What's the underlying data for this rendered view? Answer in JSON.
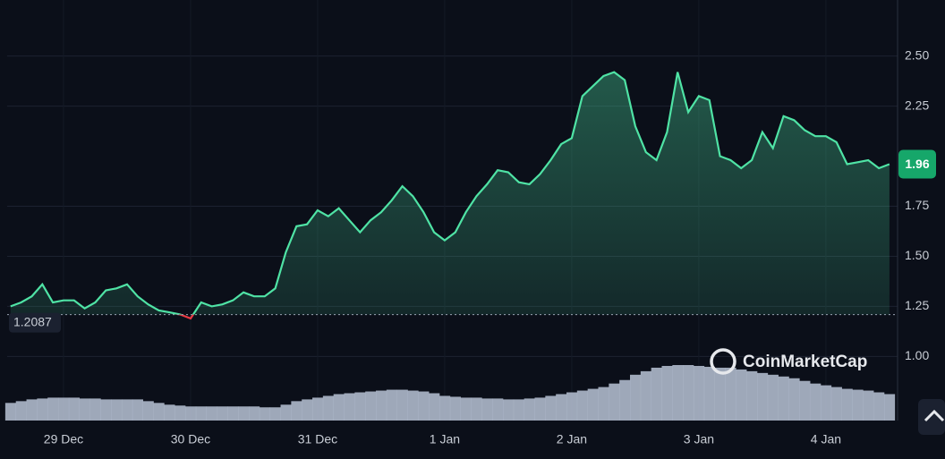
{
  "chart_data": {
    "type": "line",
    "brand": "CoinMarketCap",
    "values": [
      1.25,
      1.27,
      1.3,
      1.36,
      1.27,
      1.28,
      1.28,
      1.24,
      1.27,
      1.33,
      1.34,
      1.36,
      1.3,
      1.26,
      1.23,
      1.22,
      1.21,
      1.19,
      1.27,
      1.25,
      1.26,
      1.28,
      1.32,
      1.3,
      1.3,
      1.34,
      1.52,
      1.65,
      1.66,
      1.73,
      1.7,
      1.74,
      1.68,
      1.62,
      1.68,
      1.72,
      1.78,
      1.85,
      1.8,
      1.72,
      1.62,
      1.58,
      1.62,
      1.72,
      1.8,
      1.86,
      1.93,
      1.92,
      1.87,
      1.86,
      1.91,
      1.98,
      2.06,
      2.09,
      2.3,
      2.35,
      2.4,
      2.42,
      2.38,
      2.15,
      2.02,
      1.98,
      2.12,
      2.42,
      2.22,
      2.3,
      2.28,
      2.0,
      1.98,
      1.94,
      1.98,
      2.12,
      2.04,
      2.2,
      2.18,
      2.13,
      2.1,
      2.1,
      2.07,
      1.96,
      1.97,
      1.98,
      1.94,
      1.96
    ],
    "volume": [
      20,
      22,
      24,
      25,
      26,
      26,
      26,
      25,
      25,
      24,
      24,
      24,
      24,
      22,
      20,
      18,
      17,
      16,
      16,
      16,
      16,
      16,
      16,
      16,
      15,
      15,
      18,
      22,
      24,
      26,
      28,
      30,
      31,
      32,
      33,
      34,
      35,
      35,
      34,
      33,
      31,
      28,
      27,
      26,
      26,
      25,
      25,
      24,
      24,
      25,
      26,
      28,
      30,
      32,
      34,
      36,
      38,
      42,
      46,
      52,
      56,
      60,
      62,
      63,
      63,
      62,
      61,
      60,
      60,
      58,
      56,
      54,
      52,
      50,
      48,
      45,
      42,
      40,
      38,
      36,
      35,
      34,
      32,
      30
    ],
    "color": "#4fe3a5",
    "down_color": "#ea3943",
    "reference_value": 1.2087,
    "current_price": 1.96,
    "xlim": [
      0,
      83
    ],
    "xticks": [
      {
        "value": 5,
        "label": "29 Dec"
      },
      {
        "value": 17,
        "label": "30 Dec"
      },
      {
        "value": 29,
        "label": "31 Dec"
      },
      {
        "value": 41,
        "label": "1 Jan"
      },
      {
        "value": 53,
        "label": "2 Jan"
      },
      {
        "value": 65,
        "label": "3 Jan"
      },
      {
        "value": 77,
        "label": "4 Jan"
      }
    ],
    "ylim": [
      0.68,
      2.78
    ],
    "yticks": [
      {
        "value": 1.0,
        "label": "1.00"
      },
      1.25,
      {
        "value": 1.5,
        "label": "1.50"
      },
      1.75,
      2.25,
      {
        "value": 2.5,
        "label": "2.50"
      }
    ],
    "grid": true
  }
}
